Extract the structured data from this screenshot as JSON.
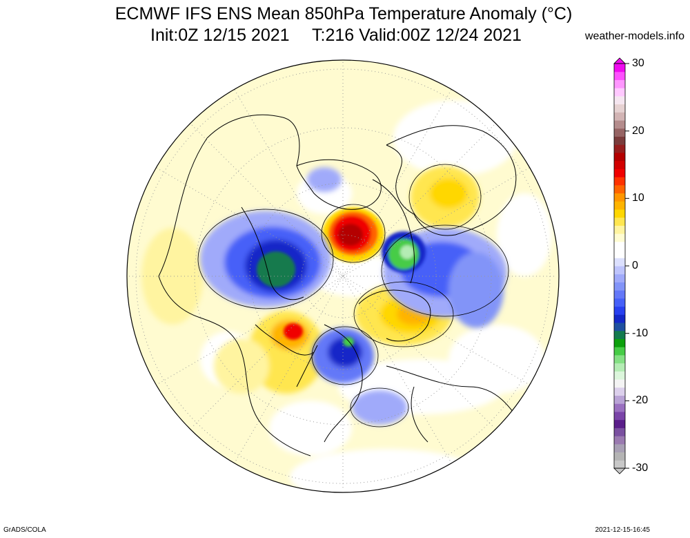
{
  "title": {
    "line1": "ECMWF IFS ENS Mean 850hPa Temperature Anomaly (°C)",
    "line2_init": "Init:0Z 12/15 2021",
    "line2_valid": "T:216 Valid:00Z 12/24 2021"
  },
  "credit": "weather-models.info",
  "footer": {
    "left": "GrADS/COLA",
    "right": "2021-12-15-16:45"
  },
  "map": {
    "projection": "north polar stereographic",
    "variable": "850hPa temperature anomaly",
    "units": "°C"
  },
  "colorbar": {
    "labels": [
      "30",
      "20",
      "10",
      "0",
      "-10",
      "-20",
      "-30"
    ],
    "min": -30,
    "max": 30,
    "colors": [
      "#c8c8c8",
      "#b4b4b4",
      "#a8a0b4",
      "#9a7ab0",
      "#7a50a0",
      "#5a1e8a",
      "#7a44a8",
      "#9a70c0",
      "#b9a3d6",
      "#dcd0ec",
      "#f4f4f4",
      "#dcf6dc",
      "#b4ecb4",
      "#84e084",
      "#46cc46",
      "#0ca00c",
      "#137a4e",
      "#1e50a0",
      "#1428c8",
      "#2840f0",
      "#4660f8",
      "#6478f8",
      "#8294f8",
      "#a0aafa",
      "#bec4fc",
      "#dce0fe",
      "#ffffff",
      "#ffffff",
      "#fffcd2",
      "#fff4a0",
      "#ffe650",
      "#ffd700",
      "#ffb400",
      "#ff9600",
      "#ff6400",
      "#ff3200",
      "#f00000",
      "#d20000",
      "#b40000",
      "#961e1e",
      "#7a3c3c",
      "#966464",
      "#b48c8c",
      "#d2b4b4",
      "#e6d2d2",
      "#f5e6f0",
      "#ffc8ff",
      "#ff96ff",
      "#ff50ff",
      "#f00af0"
    ]
  }
}
